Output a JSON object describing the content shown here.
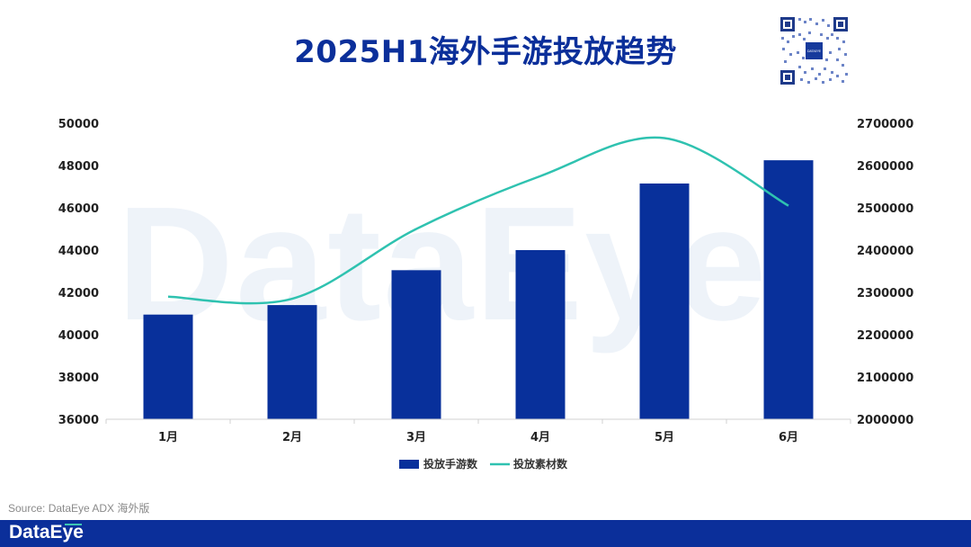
{
  "header": {
    "title": "2025H1海外手游投放趋势"
  },
  "source": "Source: DataEye ADX 海外版",
  "footer": {
    "logo": "DataEye"
  },
  "watermark": "DataEye",
  "qr_code": {
    "center_label": "DATAEYE"
  },
  "colors": {
    "bar": "#08309b",
    "line": "#2fc2b0",
    "title": "#0b2f9a",
    "footer": "#0b2f9a"
  },
  "chart_data": {
    "type": "bar",
    "categories": [
      "1月",
      "2月",
      "3月",
      "4月",
      "5月",
      "6月"
    ],
    "series": [
      {
        "name": "投放手游数",
        "type": "bar",
        "axis": "left",
        "values": [
          40950,
          41400,
          43050,
          44000,
          47150,
          48250
        ]
      },
      {
        "name": "投放素材数",
        "type": "line",
        "axis": "right",
        "smooth": true,
        "values": [
          2290000,
          2285000,
          2450000,
          2575000,
          2665000,
          2505000
        ]
      }
    ],
    "y_left": {
      "range": [
        36000,
        50000
      ],
      "ticks": [
        "36000",
        "38000",
        "40000",
        "42000",
        "44000",
        "46000",
        "48000",
        "50000"
      ]
    },
    "y_right": {
      "range": [
        2000000,
        2700000
      ],
      "ticks": [
        "2000000",
        "2100000",
        "2200000",
        "2300000",
        "2400000",
        "2500000",
        "2600000",
        "2700000"
      ]
    },
    "grid": false,
    "legend": "bottom-center"
  }
}
